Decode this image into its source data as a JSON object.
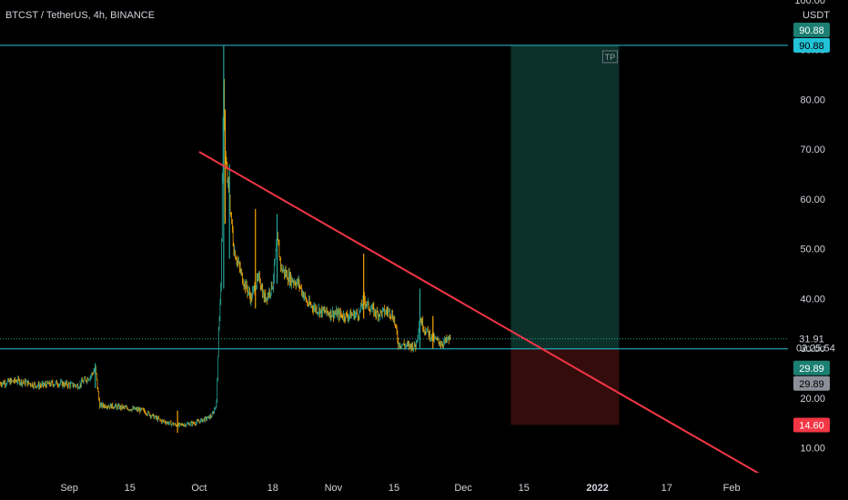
{
  "chart_data": {
    "type": "candlestick",
    "title": "BTCST / TetherUS, 4h, BINANCE",
    "currency": "USDT",
    "ylim": [
      5,
      100
    ],
    "y_ticks": [
      10,
      20,
      30,
      40,
      50,
      60,
      70,
      80,
      90,
      100
    ],
    "y_tick_labels": [
      "10.00",
      "20.00",
      "30.00",
      "40.00",
      "50.00",
      "60.00",
      "70.00",
      "80.00",
      "90.00",
      "100.00"
    ],
    "x_range": [
      "2021-08-16",
      "2022-02-14"
    ],
    "x_ticks": [
      {
        "date": "2021-09-01",
        "label": "Sep",
        "bold": false
      },
      {
        "date": "2021-09-15",
        "label": "15",
        "bold": false
      },
      {
        "date": "2021-10-01",
        "label": "Oct",
        "bold": false
      },
      {
        "date": "2021-10-18",
        "label": "18",
        "bold": false
      },
      {
        "date": "2021-11-01",
        "label": "Nov",
        "bold": false
      },
      {
        "date": "2021-11-15",
        "label": "15",
        "bold": false
      },
      {
        "date": "2021-12-01",
        "label": "Dec",
        "bold": false
      },
      {
        "date": "2021-12-15",
        "label": "15",
        "bold": false
      },
      {
        "date": "2022-01-01",
        "label": "2022",
        "bold": true
      },
      {
        "date": "2022-01-17",
        "label": "17",
        "bold": false
      },
      {
        "date": "2022-02-01",
        "label": "Feb",
        "bold": false
      }
    ],
    "price_path": [
      [
        "2021-08-16",
        23.0
      ],
      [
        "2021-08-20",
        23.5
      ],
      [
        "2021-08-25",
        22.5
      ],
      [
        "2021-08-29",
        23.0
      ],
      [
        "2021-09-03",
        22.5
      ],
      [
        "2021-09-06",
        24.5
      ],
      [
        "2021-09-07",
        26.0
      ],
      [
        "2021-09-08",
        18.5
      ],
      [
        "2021-09-10",
        18.5
      ],
      [
        "2021-09-14",
        18.0
      ],
      [
        "2021-09-18",
        17.5
      ],
      [
        "2021-09-22",
        15.5
      ],
      [
        "2021-09-26",
        14.5
      ],
      [
        "2021-09-30",
        15.0
      ],
      [
        "2021-10-03",
        16.0
      ],
      [
        "2021-10-04",
        16.5
      ],
      [
        "2021-10-05",
        19.0
      ],
      [
        "2021-10-05T12",
        34.0
      ],
      [
        "2021-10-06",
        42.0
      ],
      [
        "2021-10-06T16",
        84.0
      ],
      [
        "2021-10-07",
        68.0
      ],
      [
        "2021-10-08",
        60.0
      ],
      [
        "2021-10-09",
        50.0
      ],
      [
        "2021-10-10",
        47.0
      ],
      [
        "2021-10-11",
        44.0
      ],
      [
        "2021-10-12",
        42.0
      ],
      [
        "2021-10-13",
        40.0
      ],
      [
        "2021-10-14",
        43.0
      ],
      [
        "2021-10-15",
        44.0
      ],
      [
        "2021-10-16",
        40.0
      ],
      [
        "2021-10-17",
        41.0
      ],
      [
        "2021-10-18",
        43.0
      ],
      [
        "2021-10-19",
        52.0
      ],
      [
        "2021-10-20",
        46.0
      ],
      [
        "2021-10-22",
        44.0
      ],
      [
        "2021-10-24",
        43.0
      ],
      [
        "2021-10-26",
        39.0
      ],
      [
        "2021-10-29",
        37.5
      ],
      [
        "2021-11-01",
        37.0
      ],
      [
        "2021-11-04",
        36.5
      ],
      [
        "2021-11-07",
        37.0
      ],
      [
        "2021-11-08",
        40.0
      ],
      [
        "2021-11-09",
        38.5
      ],
      [
        "2021-11-11",
        37.0
      ],
      [
        "2021-11-14",
        37.5
      ],
      [
        "2021-11-15",
        36.0
      ],
      [
        "2021-11-16",
        31.0
      ],
      [
        "2021-11-18",
        30.5
      ],
      [
        "2021-11-20",
        30.5
      ],
      [
        "2021-11-21",
        36.0
      ],
      [
        "2021-11-22",
        34.0
      ],
      [
        "2021-11-24",
        32.0
      ],
      [
        "2021-11-26",
        31.0
      ],
      [
        "2021-11-28",
        31.9
      ]
    ],
    "spikes": [
      {
        "date": "2021-09-07",
        "high": 27.0,
        "low": 22.0
      },
      {
        "date": "2021-09-26",
        "high": 17.5,
        "low": 13.0
      },
      {
        "date": "2021-10-06T16",
        "high": 90.88,
        "low": 42.0
      },
      {
        "date": "2021-10-07",
        "high": 78.0,
        "low": 55.0
      },
      {
        "date": "2021-10-08",
        "high": 67.0,
        "low": 48.0
      },
      {
        "date": "2021-10-14",
        "high": 58.0,
        "low": 38.0
      },
      {
        "date": "2021-10-19",
        "high": 57.0,
        "low": 43.0
      },
      {
        "date": "2021-11-08",
        "high": 49.0,
        "low": 36.0
      },
      {
        "date": "2021-11-21",
        "high": 42.0,
        "low": 30.0
      },
      {
        "date": "2021-11-24",
        "high": 36.5,
        "low": 30.0
      }
    ],
    "trendline": {
      "start": [
        "2021-10-01",
        69.5
      ],
      "end": [
        "2022-02-08",
        4.5
      ],
      "color": "#f23645"
    },
    "horizontal_lines": [
      {
        "price": 90.88,
        "color": "#22c3d8"
      },
      {
        "price": 29.89,
        "color": "#22c3d8"
      }
    ],
    "last_price_line": {
      "price": 31.91,
      "color": "#26a69a"
    },
    "position_tool": {
      "start": "2021-12-12",
      "end": "2022-01-06",
      "entry": 29.89,
      "target": 90.88,
      "stop": 14.6,
      "tag": "TP",
      "profit_color": "#0e3a33",
      "loss_color": "#3b0d0d"
    },
    "price_labels": [
      {
        "price": 90.88,
        "text": "90.88",
        "bg": "#1b7f72",
        "fg": "#ffffff"
      },
      {
        "price": 90.88,
        "text": "90.88",
        "bg": "#22c3d8",
        "fg": "#000000"
      },
      {
        "price": 31.91,
        "text": "31.91",
        "bg": "#000000",
        "fg": "#d1d4dc"
      },
      {
        "price": 29.89,
        "text": "29.89",
        "bg": "#1b7f72",
        "fg": "#ffffff"
      },
      {
        "price": 29.89,
        "text": "29.89",
        "bg": "#8a8f98",
        "fg": "#000000"
      },
      {
        "price": 14.6,
        "text": "14.60",
        "bg": "#f23645",
        "fg": "#ffffff"
      }
    ],
    "countdown": "02:25:54",
    "colors": {
      "up": "#26a69a",
      "down": "#f7a600",
      "axis_text": "#d1d4dc",
      "background": "#000000"
    }
  }
}
